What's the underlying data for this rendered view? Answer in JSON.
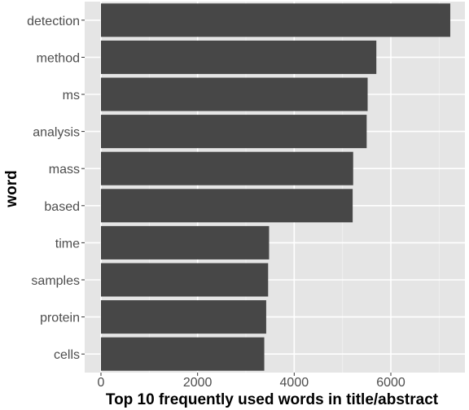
{
  "chart_data": {
    "type": "bar",
    "orientation": "horizontal",
    "title": "",
    "xlabel": "Top 10 frequently used words in title/abstract",
    "ylabel": "word",
    "categories": [
      "detection",
      "method",
      "ms",
      "analysis",
      "mass",
      "based",
      "time",
      "samples",
      "protein",
      "cells"
    ],
    "values": [
      7230,
      5700,
      5520,
      5500,
      5220,
      5210,
      3480,
      3460,
      3420,
      3380
    ],
    "xlim": [
      0,
      7600
    ],
    "xticks": [
      0,
      2000,
      4000,
      6000
    ],
    "grid": true,
    "legend": "none"
  },
  "colors": {
    "panel_background": "#e5e5e5",
    "grid_major": "#ffffff",
    "bar_fill": "#474747",
    "tick_text": "#4d4d4d",
    "title_text": "#000000"
  }
}
